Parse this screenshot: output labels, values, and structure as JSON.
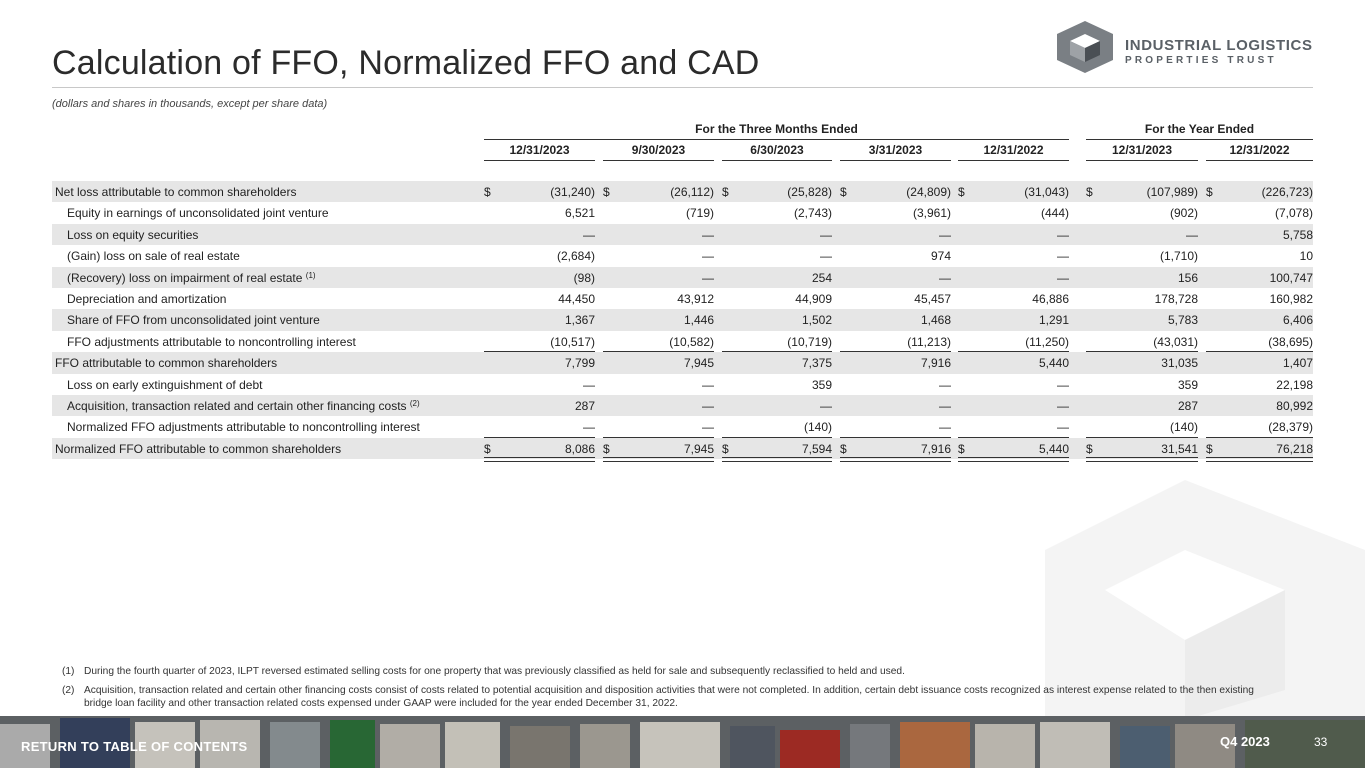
{
  "page": {
    "title": "Calculation of FFO, Normalized FFO and CAD",
    "subtitle": "(dollars and shares in thousands, except per share data)",
    "logo": {
      "line1": "INDUSTRIAL LOGISTICS",
      "line2": "PROPERTIES TRUST"
    },
    "footer": {
      "back_link": "RETURN TO TABLE OF CONTENTS",
      "quarter": "Q4 2023",
      "page_number": "33"
    }
  },
  "table": {
    "groups": [
      {
        "label": "For the Three Months Ended"
      },
      {
        "label": "For the Year Ended"
      }
    ],
    "columns": [
      "12/31/2023",
      "9/30/2023",
      "6/30/2023",
      "3/31/2023",
      "12/31/2022",
      "12/31/2023",
      "12/31/2022"
    ],
    "rows": [
      {
        "label": "Net loss attributable to common shareholders",
        "note": "",
        "indent": false,
        "shade": true,
        "dollar": true,
        "rule": "",
        "values": [
          "(31,240)",
          "(26,112)",
          "(25,828)",
          "(24,809)",
          "(31,043)",
          "(107,989)",
          "(226,723)"
        ]
      },
      {
        "label": "Equity in earnings of unconsolidated joint venture",
        "note": "",
        "indent": true,
        "shade": false,
        "dollar": false,
        "rule": "",
        "values": [
          "6,521",
          "(719)",
          "(2,743)",
          "(3,961)",
          "(444)",
          "(902)",
          "(7,078)"
        ]
      },
      {
        "label": "Loss on equity securities",
        "note": "",
        "indent": true,
        "shade": true,
        "dollar": false,
        "rule": "",
        "values": [
          "—",
          "—",
          "—",
          "—",
          "—",
          "—",
          "5,758"
        ]
      },
      {
        "label": "(Gain) loss on sale of real estate",
        "note": "",
        "indent": true,
        "shade": false,
        "dollar": false,
        "rule": "",
        "values": [
          "(2,684)",
          "—",
          "—",
          "974",
          "—",
          "(1,710)",
          "10"
        ]
      },
      {
        "label": "(Recovery) loss on impairment of real estate",
        "note": "(1)",
        "indent": true,
        "shade": true,
        "dollar": false,
        "rule": "",
        "values": [
          "(98)",
          "—",
          "254",
          "—",
          "—",
          "156",
          "100,747"
        ]
      },
      {
        "label": "Depreciation and amortization",
        "note": "",
        "indent": true,
        "shade": false,
        "dollar": false,
        "rule": "",
        "values": [
          "44,450",
          "43,912",
          "44,909",
          "45,457",
          "46,886",
          "178,728",
          "160,982"
        ]
      },
      {
        "label": "Share of FFO from unconsolidated joint venture",
        "note": "",
        "indent": true,
        "shade": true,
        "dollar": false,
        "rule": "",
        "values": [
          "1,367",
          "1,446",
          "1,502",
          "1,468",
          "1,291",
          "5,783",
          "6,406"
        ]
      },
      {
        "label": "FFO adjustments attributable to noncontrolling interest",
        "note": "",
        "indent": true,
        "shade": false,
        "dollar": false,
        "rule": "single",
        "values": [
          "(10,517)",
          "(10,582)",
          "(10,719)",
          "(11,213)",
          "(11,250)",
          "(43,031)",
          "(38,695)"
        ]
      },
      {
        "label": "FFO attributable to common shareholders",
        "note": "",
        "indent": false,
        "shade": true,
        "dollar": false,
        "rule": "",
        "values": [
          "7,799",
          "7,945",
          "7,375",
          "7,916",
          "5,440",
          "31,035",
          "1,407"
        ]
      },
      {
        "label": "Loss on early extinguishment of debt",
        "note": "",
        "indent": true,
        "shade": false,
        "dollar": false,
        "rule": "",
        "values": [
          "—",
          "—",
          "359",
          "—",
          "—",
          "359",
          "22,198"
        ]
      },
      {
        "label": "Acquisition, transaction related and certain other financing costs",
        "note": "(2)",
        "indent": true,
        "shade": true,
        "dollar": false,
        "rule": "",
        "values": [
          "287",
          "—",
          "—",
          "—",
          "—",
          "287",
          "80,992"
        ]
      },
      {
        "label": "Normalized FFO adjustments attributable to noncontrolling interest",
        "note": "",
        "indent": true,
        "shade": false,
        "dollar": false,
        "rule": "single",
        "values": [
          "—",
          "—",
          "(140)",
          "—",
          "—",
          "(140)",
          "(28,379)"
        ]
      },
      {
        "label": "Normalized FFO attributable to common shareholders",
        "note": "",
        "indent": false,
        "shade": true,
        "dollar": true,
        "rule": "double",
        "values": [
          "8,086",
          "7,945",
          "7,594",
          "7,916",
          "5,440",
          "31,541",
          "76,218"
        ]
      }
    ]
  },
  "footnotes": [
    {
      "num": "(1)",
      "text": "During the fourth quarter of 2023, ILPT reversed estimated selling costs for one property that was previously classified as held for sale and subsequently reclassified to held and used."
    },
    {
      "num": "(2)",
      "text": "Acquisition, transaction related and certain other financing costs consist of costs related to potential acquisition and disposition activities that were not completed. In addition, certain debt issuance costs recognized as interest expense related to the then existing bridge loan facility and other transaction related costs expensed under GAAP were included for the year ended December 31, 2022."
    }
  ],
  "colors": {
    "row_shade": "#e6e6e6",
    "logo_gray": "#5a6066",
    "rule": "#333333"
  },
  "icons": {
    "logo_mark": "hexagon-cube-icon"
  }
}
